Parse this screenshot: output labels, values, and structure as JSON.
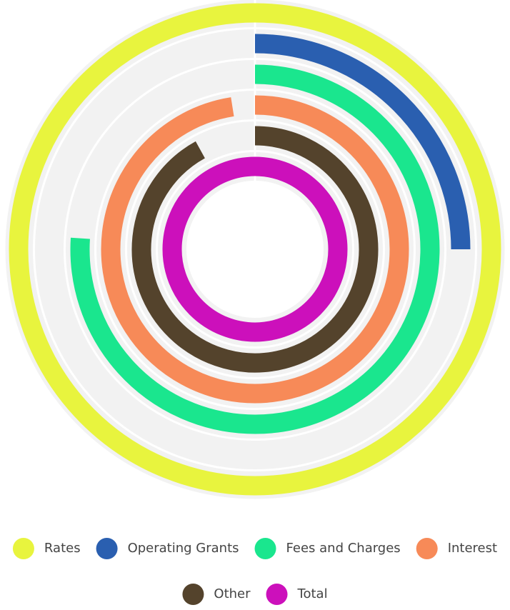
{
  "chart_data": {
    "type": "radialBar",
    "categories": [
      "Rates",
      "Operating Grants",
      "Fees and Charges",
      "Interest",
      "Other",
      "Total"
    ],
    "values": [
      100,
      25,
      76,
      97.5,
      92,
      100
    ],
    "colors": [
      "#e8f43e",
      "#2a5fb0",
      "#1ae68e",
      "#f78a58",
      "#54432c",
      "#cc10bb"
    ],
    "ylim": [
      0,
      100
    ]
  }
}
